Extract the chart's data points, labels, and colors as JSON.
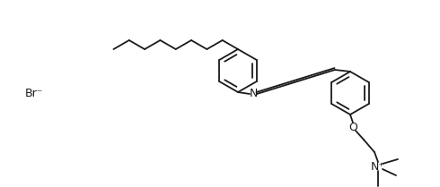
{
  "background_color": "#ffffff",
  "line_color": "#1a1a1a",
  "line_width": 1.3,
  "font_size": 8,
  "br_label": "Br⁻",
  "n_label": "N",
  "nplus_label": "N⁺"
}
